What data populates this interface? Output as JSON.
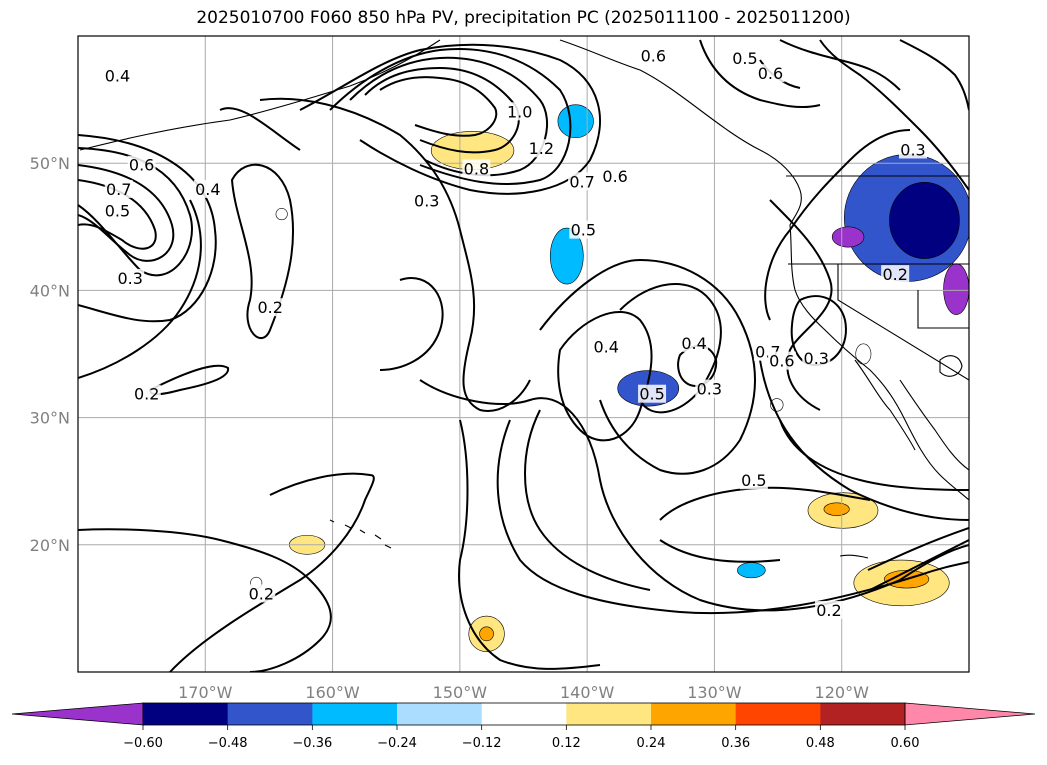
{
  "chart_data": {
    "type": "map",
    "title": "2025010700 F060 850 hPa PV, precipitation PC (2025011100 - 2025011200)",
    "map_extent": {
      "lon": [
        -180,
        -110
      ],
      "lat": [
        10,
        60
      ]
    },
    "grid": true,
    "lon_ticks": [
      {
        "value": -170,
        "label": "170°W"
      },
      {
        "value": -160,
        "label": "160°W"
      },
      {
        "value": -150,
        "label": "150°W"
      },
      {
        "value": -140,
        "label": "140°W"
      },
      {
        "value": -130,
        "label": "130°W"
      },
      {
        "value": -120,
        "label": "120°W"
      }
    ],
    "lat_ticks": [
      {
        "value": 20,
        "label": "20°N"
      },
      {
        "value": 30,
        "label": "30°N"
      },
      {
        "value": 40,
        "label": "40°N"
      },
      {
        "value": 50,
        "label": "50°N"
      }
    ],
    "colorbar": {
      "levels": [
        -0.6,
        -0.48,
        -0.36,
        -0.24,
        -0.12,
        0.12,
        0.24,
        0.36,
        0.48,
        0.6
      ],
      "tick_labels": [
        "−0.60",
        "−0.48",
        "−0.36",
        "−0.24",
        "−0.12",
        "0.12",
        "0.24",
        "0.36",
        "0.48",
        "0.60"
      ],
      "colors": [
        "#9933cc",
        "#000080",
        "#3355cc",
        "#00bbff",
        "#aaddff",
        "#ffffff",
        "#ffe680",
        "#ffa500",
        "#ff4500",
        "#b22222",
        "#ff88aa"
      ],
      "extend": "both"
    },
    "contour_labels": [
      {
        "text": "0.4",
        "lon": -176.9,
        "lat": 56.8
      },
      {
        "text": "0.6",
        "lon": -175.0,
        "lat": 49.8
      },
      {
        "text": "0.7",
        "lon": -176.8,
        "lat": 47.9
      },
      {
        "text": "0.5",
        "lon": -176.9,
        "lat": 46.2
      },
      {
        "text": "0.3",
        "lon": -175.9,
        "lat": 40.9
      },
      {
        "text": "0.4",
        "lon": -169.8,
        "lat": 47.9
      },
      {
        "text": "0.2",
        "lon": -164.9,
        "lat": 38.6
      },
      {
        "text": "0.2",
        "lon": -174.6,
        "lat": 31.8
      },
      {
        "text": "0.3",
        "lon": -152.6,
        "lat": 47.0
      },
      {
        "text": "0.8",
        "lon": -148.7,
        "lat": 49.5
      },
      {
        "text": "1.0",
        "lon": -145.3,
        "lat": 54.0
      },
      {
        "text": "1.2",
        "lon": -143.6,
        "lat": 51.1
      },
      {
        "text": "0.7",
        "lon": -140.4,
        "lat": 48.5
      },
      {
        "text": "0.6",
        "lon": -137.8,
        "lat": 48.9
      },
      {
        "text": "0.5",
        "lon": -140.3,
        "lat": 44.7
      },
      {
        "text": "0.6",
        "lon": -134.8,
        "lat": 58.4
      },
      {
        "text": "0.5",
        "lon": -127.6,
        "lat": 58.2
      },
      {
        "text": "0.6",
        "lon": -125.6,
        "lat": 57.0
      },
      {
        "text": "0.4",
        "lon": -138.5,
        "lat": 35.5
      },
      {
        "text": "0.4",
        "lon": -131.6,
        "lat": 35.8
      },
      {
        "text": "0.5",
        "lon": -134.9,
        "lat": 31.8
      },
      {
        "text": "0.3",
        "lon": -130.4,
        "lat": 32.2
      },
      {
        "text": "0.5",
        "lon": -126.9,
        "lat": 25.0
      },
      {
        "text": "0.2",
        "lon": -165.6,
        "lat": 16.1
      },
      {
        "text": "0.2",
        "lon": -121.0,
        "lat": 14.8
      },
      {
        "text": "0.3",
        "lon": -114.4,
        "lat": 51.0
      },
      {
        "text": "0.2",
        "lon": -115.8,
        "lat": 41.2
      },
      {
        "text": "0.7",
        "lon": -125.8,
        "lat": 35.1
      },
      {
        "text": "0.6",
        "lon": -124.7,
        "lat": 34.4
      },
      {
        "text": "0.3",
        "lon": -122.0,
        "lat": 34.6
      }
    ],
    "precipitation_pc_areas": [
      {
        "value": -0.36,
        "lon": -114.8,
        "lat": 45.7,
        "w": 10.0,
        "h": 10.0
      },
      {
        "value": -0.48,
        "lon": -113.5,
        "lat": 45.5,
        "w": 5.5,
        "h": 6.0
      },
      {
        "value": -0.6,
        "lon": -119.5,
        "lat": 44.2,
        "w": 2.5,
        "h": 1.6
      },
      {
        "value": -0.6,
        "lon": -111.0,
        "lat": 40.1,
        "w": 2.0,
        "h": 4.0
      },
      {
        "value": -0.24,
        "lon": -141.6,
        "lat": 42.7,
        "w": 2.6,
        "h": 4.4
      },
      {
        "value": -0.24,
        "lon": -140.9,
        "lat": 53.3,
        "w": 2.8,
        "h": 2.6
      },
      {
        "value": -0.36,
        "lon": -135.2,
        "lat": 32.3,
        "w": 4.8,
        "h": 2.8
      },
      {
        "value": -0.24,
        "lon": -127.1,
        "lat": 18.0,
        "w": 2.2,
        "h": 1.2
      },
      {
        "value": 0.24,
        "lon": -149.0,
        "lat": 51.0,
        "w": 6.5,
        "h": 3.0
      },
      {
        "value": 0.24,
        "lon": -119.9,
        "lat": 22.7,
        "w": 5.5,
        "h": 2.8
      },
      {
        "value": 0.36,
        "lon": -120.4,
        "lat": 22.8,
        "w": 2.0,
        "h": 1.0
      },
      {
        "value": 0.24,
        "lon": -115.3,
        "lat": 17.0,
        "w": 7.5,
        "h": 3.6
      },
      {
        "value": 0.36,
        "lon": -114.9,
        "lat": 17.3,
        "w": 3.5,
        "h": 1.4
      },
      {
        "value": 0.24,
        "lon": -147.9,
        "lat": 13.0,
        "w": 2.8,
        "h": 2.8
      },
      {
        "value": 0.36,
        "lon": -147.9,
        "lat": 13.0,
        "w": 1.1,
        "h": 1.1
      },
      {
        "value": 0.24,
        "lon": -162.0,
        "lat": 20.0,
        "w": 2.8,
        "h": 1.5
      },
      {
        "value": 0.12,
        "lon": -118.3,
        "lat": 35.0,
        "w": 1.2,
        "h": 1.6
      },
      {
        "value": 0.12,
        "lon": -125.1,
        "lat": 31.0,
        "w": 1.0,
        "h": 1.0
      },
      {
        "value": 0.12,
        "lon": -164.0,
        "lat": 46.0,
        "w": 0.9,
        "h": 0.9
      },
      {
        "value": 0.12,
        "lon": -166.0,
        "lat": 17.0,
        "w": 0.9,
        "h": 0.9
      }
    ]
  }
}
